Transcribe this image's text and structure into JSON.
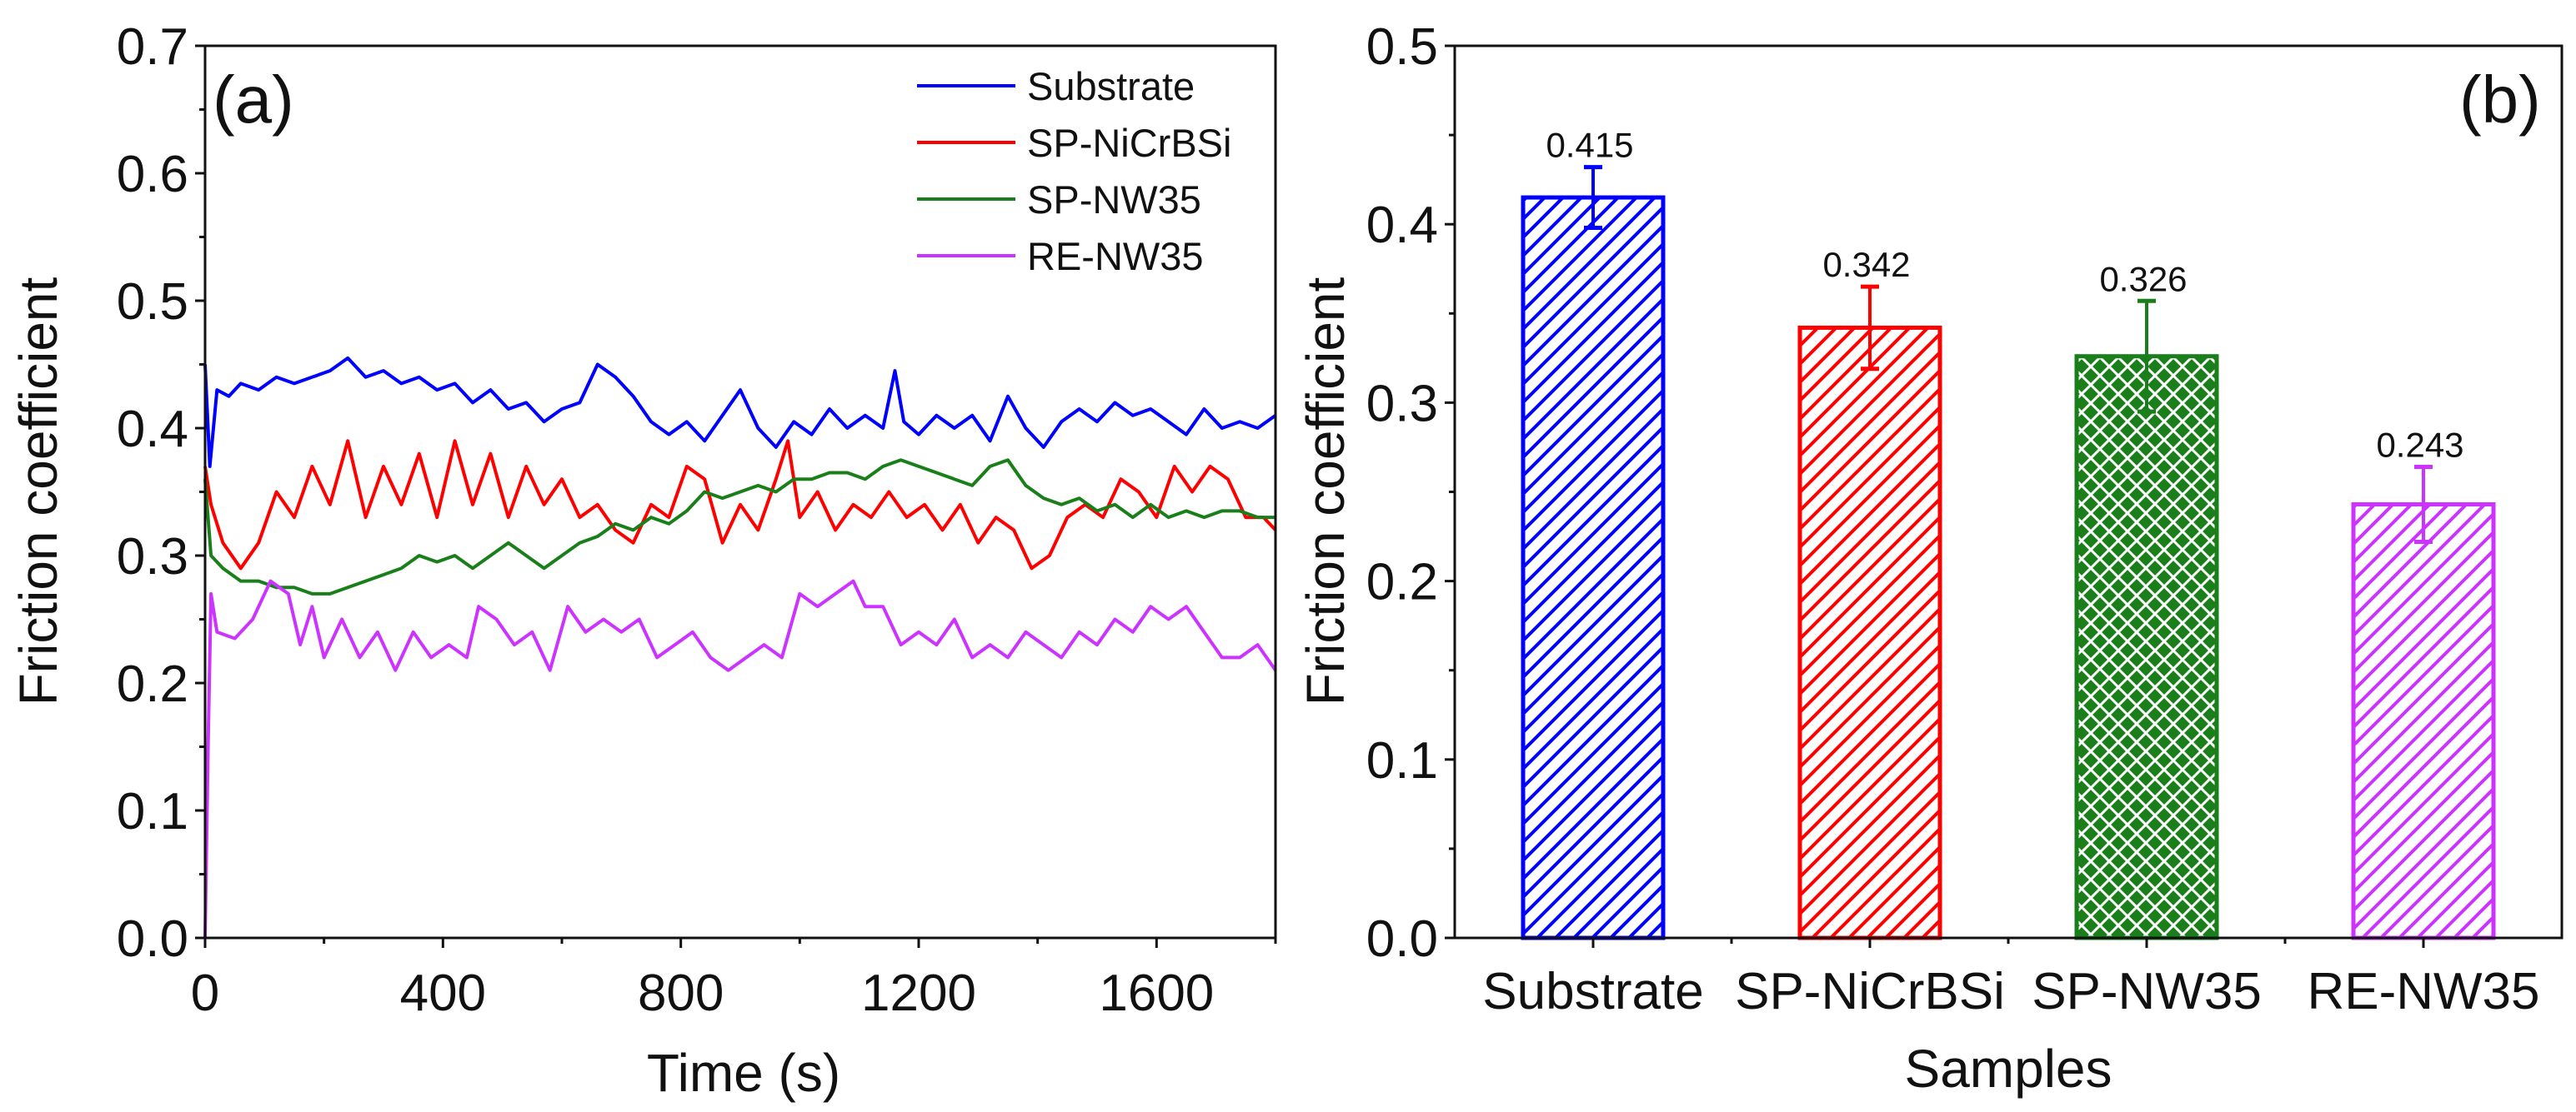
{
  "chart_data": [
    {
      "type": "line",
      "panel_label": "(a)",
      "xlabel": "Time (s)",
      "ylabel": "Friction coefficient",
      "xlim": [
        0,
        1800
      ],
      "ylim": [
        0,
        0.7
      ],
      "xticks": [
        "0",
        "400",
        "800",
        "1200",
        "1600"
      ],
      "xtick_values": [
        0,
        400,
        800,
        1200,
        1600
      ],
      "yticks": [
        "0.0",
        "0.1",
        "0.2",
        "0.3",
        "0.4",
        "0.5",
        "0.6",
        "0.7"
      ],
      "ytick_values": [
        0,
        0.1,
        0.2,
        0.3,
        0.4,
        0.5,
        0.6,
        0.7
      ],
      "legend_position": "top-right",
      "series": [
        {
          "name": "Substrate",
          "color": "#0000ff",
          "points": [
            [
              0,
              0.45
            ],
            [
              8,
              0.37
            ],
            [
              20,
              0.43
            ],
            [
              40,
              0.425
            ],
            [
              60,
              0.435
            ],
            [
              90,
              0.43
            ],
            [
              120,
              0.44
            ],
            [
              150,
              0.435
            ],
            [
              180,
              0.44
            ],
            [
              210,
              0.445
            ],
            [
              240,
              0.455
            ],
            [
              270,
              0.44
            ],
            [
              300,
              0.445
            ],
            [
              330,
              0.435
            ],
            [
              360,
              0.44
            ],
            [
              390,
              0.43
            ],
            [
              420,
              0.435
            ],
            [
              450,
              0.42
            ],
            [
              480,
              0.43
            ],
            [
              510,
              0.415
            ],
            [
              540,
              0.42
            ],
            [
              570,
              0.405
            ],
            [
              600,
              0.415
            ],
            [
              630,
              0.42
            ],
            [
              660,
              0.45
            ],
            [
              690,
              0.44
            ],
            [
              720,
              0.425
            ],
            [
              750,
              0.405
            ],
            [
              780,
              0.395
            ],
            [
              810,
              0.405
            ],
            [
              840,
              0.39
            ],
            [
              870,
              0.41
            ],
            [
              900,
              0.43
            ],
            [
              930,
              0.4
            ],
            [
              960,
              0.385
            ],
            [
              990,
              0.405
            ],
            [
              1020,
              0.395
            ],
            [
              1050,
              0.415
            ],
            [
              1080,
              0.4
            ],
            [
              1110,
              0.41
            ],
            [
              1140,
              0.4
            ],
            [
              1160,
              0.445
            ],
            [
              1175,
              0.405
            ],
            [
              1200,
              0.395
            ],
            [
              1230,
              0.41
            ],
            [
              1260,
              0.4
            ],
            [
              1290,
              0.41
            ],
            [
              1320,
              0.39
            ],
            [
              1350,
              0.425
            ],
            [
              1380,
              0.4
            ],
            [
              1410,
              0.385
            ],
            [
              1440,
              0.405
            ],
            [
              1470,
              0.415
            ],
            [
              1500,
              0.405
            ],
            [
              1530,
              0.42
            ],
            [
              1560,
              0.41
            ],
            [
              1590,
              0.415
            ],
            [
              1620,
              0.405
            ],
            [
              1650,
              0.395
            ],
            [
              1680,
              0.415
            ],
            [
              1710,
              0.4
            ],
            [
              1740,
              0.405
            ],
            [
              1770,
              0.4
            ],
            [
              1800,
              0.41
            ]
          ]
        },
        {
          "name": "SP-NiCrBSi",
          "color": "#ff0000",
          "points": [
            [
              0,
              0.37
            ],
            [
              10,
              0.34
            ],
            [
              30,
              0.31
            ],
            [
              60,
              0.29
            ],
            [
              90,
              0.31
            ],
            [
              120,
              0.35
            ],
            [
              150,
              0.33
            ],
            [
              180,
              0.37
            ],
            [
              210,
              0.34
            ],
            [
              240,
              0.39
            ],
            [
              270,
              0.33
            ],
            [
              300,
              0.37
            ],
            [
              330,
              0.34
            ],
            [
              360,
              0.38
            ],
            [
              390,
              0.33
            ],
            [
              420,
              0.39
            ],
            [
              450,
              0.34
            ],
            [
              480,
              0.38
            ],
            [
              510,
              0.33
            ],
            [
              540,
              0.37
            ],
            [
              570,
              0.34
            ],
            [
              600,
              0.36
            ],
            [
              630,
              0.33
            ],
            [
              660,
              0.34
            ],
            [
              690,
              0.32
            ],
            [
              720,
              0.31
            ],
            [
              750,
              0.34
            ],
            [
              780,
              0.33
            ],
            [
              810,
              0.37
            ],
            [
              840,
              0.36
            ],
            [
              870,
              0.31
            ],
            [
              900,
              0.34
            ],
            [
              930,
              0.32
            ],
            [
              960,
              0.36
            ],
            [
              980,
              0.39
            ],
            [
              1000,
              0.33
            ],
            [
              1030,
              0.35
            ],
            [
              1060,
              0.32
            ],
            [
              1090,
              0.34
            ],
            [
              1120,
              0.33
            ],
            [
              1150,
              0.35
            ],
            [
              1180,
              0.33
            ],
            [
              1210,
              0.34
            ],
            [
              1240,
              0.32
            ],
            [
              1270,
              0.34
            ],
            [
              1300,
              0.31
            ],
            [
              1330,
              0.33
            ],
            [
              1360,
              0.32
            ],
            [
              1390,
              0.29
            ],
            [
              1420,
              0.3
            ],
            [
              1450,
              0.33
            ],
            [
              1480,
              0.34
            ],
            [
              1510,
              0.33
            ],
            [
              1540,
              0.36
            ],
            [
              1570,
              0.35
            ],
            [
              1600,
              0.33
            ],
            [
              1630,
              0.37
            ],
            [
              1660,
              0.35
            ],
            [
              1690,
              0.37
            ],
            [
              1720,
              0.36
            ],
            [
              1750,
              0.33
            ],
            [
              1780,
              0.33
            ],
            [
              1800,
              0.32
            ]
          ]
        },
        {
          "name": "SP-NW35",
          "color": "#1a7f1a",
          "points": [
            [
              0,
              0.36
            ],
            [
              10,
              0.3
            ],
            [
              30,
              0.29
            ],
            [
              60,
              0.28
            ],
            [
              90,
              0.28
            ],
            [
              120,
              0.275
            ],
            [
              150,
              0.275
            ],
            [
              180,
              0.27
            ],
            [
              210,
              0.27
            ],
            [
              240,
              0.275
            ],
            [
              270,
              0.28
            ],
            [
              300,
              0.285
            ],
            [
              330,
              0.29
            ],
            [
              360,
              0.3
            ],
            [
              390,
              0.295
            ],
            [
              420,
              0.3
            ],
            [
              450,
              0.29
            ],
            [
              480,
              0.3
            ],
            [
              510,
              0.31
            ],
            [
              540,
              0.3
            ],
            [
              570,
              0.29
            ],
            [
              600,
              0.3
            ],
            [
              630,
              0.31
            ],
            [
              660,
              0.315
            ],
            [
              690,
              0.325
            ],
            [
              720,
              0.32
            ],
            [
              750,
              0.33
            ],
            [
              780,
              0.325
            ],
            [
              810,
              0.335
            ],
            [
              840,
              0.35
            ],
            [
              870,
              0.345
            ],
            [
              900,
              0.35
            ],
            [
              930,
              0.355
            ],
            [
              960,
              0.35
            ],
            [
              990,
              0.36
            ],
            [
              1020,
              0.36
            ],
            [
              1050,
              0.365
            ],
            [
              1080,
              0.365
            ],
            [
              1110,
              0.36
            ],
            [
              1140,
              0.37
            ],
            [
              1170,
              0.375
            ],
            [
              1200,
              0.37
            ],
            [
              1230,
              0.365
            ],
            [
              1260,
              0.36
            ],
            [
              1290,
              0.355
            ],
            [
              1320,
              0.37
            ],
            [
              1350,
              0.375
            ],
            [
              1380,
              0.355
            ],
            [
              1410,
              0.345
            ],
            [
              1440,
              0.34
            ],
            [
              1470,
              0.345
            ],
            [
              1500,
              0.335
            ],
            [
              1530,
              0.34
            ],
            [
              1560,
              0.33
            ],
            [
              1590,
              0.34
            ],
            [
              1620,
              0.33
            ],
            [
              1650,
              0.335
            ],
            [
              1680,
              0.33
            ],
            [
              1710,
              0.335
            ],
            [
              1740,
              0.335
            ],
            [
              1770,
              0.33
            ],
            [
              1800,
              0.33
            ]
          ]
        },
        {
          "name": "RE-NW35",
          "color": "#cc33ff",
          "points": [
            [
              0,
              0
            ],
            [
              5,
              0.15
            ],
            [
              10,
              0.27
            ],
            [
              20,
              0.24
            ],
            [
              50,
              0.235
            ],
            [
              80,
              0.25
            ],
            [
              110,
              0.28
            ],
            [
              140,
              0.27
            ],
            [
              160,
              0.23
            ],
            [
              180,
              0.26
            ],
            [
              200,
              0.22
            ],
            [
              230,
              0.25
            ],
            [
              260,
              0.22
            ],
            [
              290,
              0.24
            ],
            [
              320,
              0.21
            ],
            [
              350,
              0.24
            ],
            [
              380,
              0.22
            ],
            [
              410,
              0.23
            ],
            [
              440,
              0.22
            ],
            [
              460,
              0.26
            ],
            [
              490,
              0.25
            ],
            [
              520,
              0.23
            ],
            [
              550,
              0.24
            ],
            [
              580,
              0.21
            ],
            [
              610,
              0.26
            ],
            [
              640,
              0.24
            ],
            [
              670,
              0.25
            ],
            [
              700,
              0.24
            ],
            [
              730,
              0.25
            ],
            [
              760,
              0.22
            ],
            [
              790,
              0.23
            ],
            [
              820,
              0.24
            ],
            [
              850,
              0.22
            ],
            [
              880,
              0.21
            ],
            [
              910,
              0.22
            ],
            [
              940,
              0.23
            ],
            [
              970,
              0.22
            ],
            [
              1000,
              0.27
            ],
            [
              1030,
              0.26
            ],
            [
              1060,
              0.27
            ],
            [
              1090,
              0.28
            ],
            [
              1110,
              0.26
            ],
            [
              1140,
              0.26
            ],
            [
              1170,
              0.23
            ],
            [
              1200,
              0.24
            ],
            [
              1230,
              0.23
            ],
            [
              1260,
              0.25
            ],
            [
              1290,
              0.22
            ],
            [
              1320,
              0.23
            ],
            [
              1350,
              0.22
            ],
            [
              1380,
              0.24
            ],
            [
              1410,
              0.23
            ],
            [
              1440,
              0.22
            ],
            [
              1470,
              0.24
            ],
            [
              1500,
              0.23
            ],
            [
              1530,
              0.25
            ],
            [
              1560,
              0.24
            ],
            [
              1590,
              0.26
            ],
            [
              1620,
              0.25
            ],
            [
              1650,
              0.26
            ],
            [
              1680,
              0.24
            ],
            [
              1710,
              0.22
            ],
            [
              1740,
              0.22
            ],
            [
              1770,
              0.23
            ],
            [
              1800,
              0.21
            ]
          ]
        }
      ]
    },
    {
      "type": "bar",
      "panel_label": "(b)",
      "xlabel": "Samples",
      "ylabel": "Friction coefficient",
      "ylim": [
        0,
        0.5
      ],
      "yticks": [
        "0.0",
        "0.1",
        "0.2",
        "0.3",
        "0.4",
        "0.5"
      ],
      "ytick_values": [
        0,
        0.1,
        0.2,
        0.3,
        0.4,
        0.5
      ],
      "categories": [
        "Substrate",
        "SP-NiCrBSi",
        "SP-NW35",
        "RE-NW35"
      ],
      "values": [
        0.415,
        0.342,
        0.326,
        0.243
      ],
      "value_labels": [
        "0.415",
        "0.342",
        "0.326",
        "0.243"
      ],
      "errors": [
        0.017,
        0.023,
        0.031,
        0.021
      ],
      "colors": [
        "#0000ff",
        "#ff0000",
        "#1a7f1a",
        "#cc33ff"
      ],
      "patterns": [
        "diagonal",
        "diagonal",
        "crosshatch",
        "diagonal"
      ]
    }
  ]
}
